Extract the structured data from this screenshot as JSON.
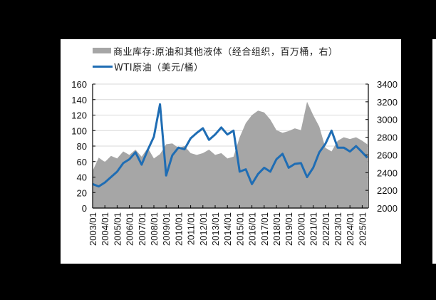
{
  "legend": {
    "series_area": "商业库存:原油和其他液体（经合组织，百万桶，右）",
    "series_line": "WTI原油（美元/桶）"
  },
  "colors": {
    "area": "#a6a6a6",
    "line": "#1f6db4",
    "grid": "#d9d9d9",
    "axis": "#000000"
  },
  "chart_data": {
    "type": "line",
    "title": "",
    "legend_position": "top",
    "grid": true,
    "x": [
      "2003/01",
      "2003/07",
      "2004/01",
      "2004/07",
      "2005/01",
      "2005/07",
      "2006/01",
      "2006/07",
      "2007/01",
      "2007/07",
      "2008/01",
      "2008/07",
      "2009/01",
      "2009/07",
      "2010/01",
      "2010/07",
      "2011/01",
      "2011/07",
      "2012/01",
      "2012/07",
      "2013/01",
      "2013/07",
      "2014/01",
      "2014/07",
      "2015/01",
      "2015/07",
      "2016/01",
      "2016/07",
      "2017/01",
      "2017/07",
      "2018/01",
      "2018/07",
      "2019/01",
      "2019/07",
      "2020/01",
      "2020/07",
      "2021/01",
      "2021/07",
      "2022/01",
      "2022/07",
      "2023/01",
      "2023/07",
      "2024/01",
      "2024/07",
      "2025/01",
      "2025/06"
    ],
    "x_tick_labels": [
      "2003/01",
      "2004/01",
      "2005/01",
      "2006/01",
      "2007/01",
      "2008/01",
      "2009/01",
      "2010/01",
      "2011/01",
      "2012/01",
      "2013/01",
      "2014/01",
      "2015/01",
      "2016/01",
      "2017/01",
      "2018/01",
      "2019/01",
      "2020/01",
      "2021/01",
      "2022/01",
      "2023/01",
      "2024/01",
      "2025/01"
    ],
    "series": [
      {
        "name": "WTI原油（美元/桶）",
        "axis": "left",
        "type": "line",
        "values": [
          31,
          28,
          33,
          40,
          47,
          58,
          63,
          72,
          56,
          75,
          92,
          134,
          42,
          68,
          78,
          76,
          90,
          97,
          103,
          88,
          95,
          104,
          95,
          100,
          47,
          50,
          31,
          44,
          52,
          47,
          63,
          70,
          52,
          57,
          58,
          40,
          52,
          72,
          83,
          100,
          78,
          78,
          73,
          80,
          72,
          65
        ]
      },
      {
        "name": "商业库存:原油和其他液体（经合组织，百万桶，右）",
        "axis": "right",
        "type": "area",
        "values": [
          2420,
          2570,
          2520,
          2590,
          2560,
          2640,
          2600,
          2660,
          2580,
          2680,
          2560,
          2610,
          2720,
          2730,
          2680,
          2700,
          2620,
          2600,
          2620,
          2660,
          2600,
          2620,
          2560,
          2580,
          2800,
          2960,
          3050,
          3100,
          3080,
          3000,
          2880,
          2850,
          2870,
          2900,
          2880,
          3200,
          3050,
          2920,
          2680,
          2640,
          2760,
          2800,
          2780,
          2800,
          2760,
          2720
        ]
      }
    ],
    "ylabel_left": "",
    "ylabel_right": "",
    "ylim_left": [
      0,
      160
    ],
    "ylim_right": [
      2000,
      3400
    ],
    "yticks_left": [
      "0",
      "20",
      "40",
      "60",
      "80",
      "100",
      "120",
      "140",
      "160"
    ],
    "yticks_right": [
      "2000",
      "2200",
      "2400",
      "2600",
      "2800",
      "3000",
      "3200",
      "3400"
    ]
  }
}
